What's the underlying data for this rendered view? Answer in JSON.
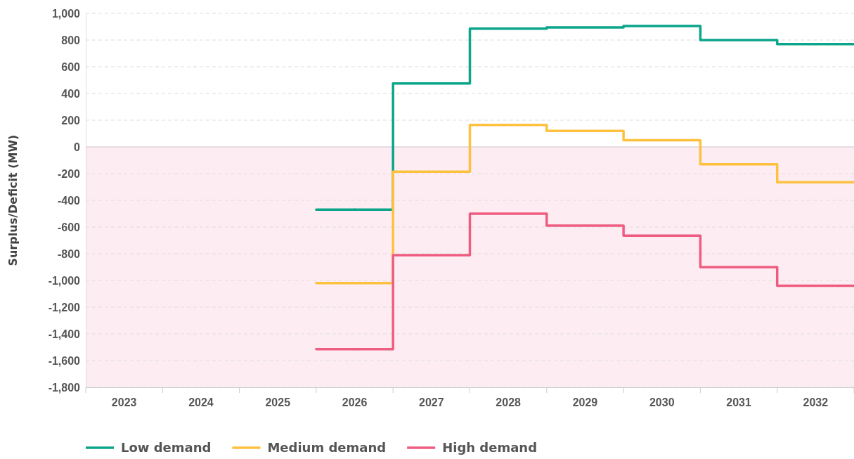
{
  "chart_data": {
    "type": "step",
    "ylabel": "Surplus/Deficit (MW)",
    "categories": [
      "2023",
      "2024",
      "2025",
      "2026",
      "2027",
      "2028",
      "2029",
      "2030",
      "2031",
      "2032"
    ],
    "series": [
      {
        "name": "Low demand",
        "color": "#0aa58a",
        "values": [
          null,
          null,
          null,
          -470,
          475,
          885,
          895,
          905,
          800,
          770
        ]
      },
      {
        "name": "Medium demand",
        "color": "#fec13f",
        "values": [
          null,
          null,
          null,
          -1020,
          -185,
          165,
          120,
          50,
          -130,
          -265
        ]
      },
      {
        "name": "High demand",
        "color": "#ee5d81",
        "values": [
          null,
          null,
          null,
          -1515,
          -810,
          -500,
          -590,
          -665,
          -900,
          -1040
        ]
      }
    ],
    "ylim": [
      -1800,
      1000
    ],
    "yticks": [
      {
        "value": -1800,
        "label": "-1,800"
      },
      {
        "value": -1600,
        "label": "-1,600"
      },
      {
        "value": -1400,
        "label": "-1,400"
      },
      {
        "value": -1200,
        "label": "-1,200"
      },
      {
        "value": -1000,
        "label": "-1,000"
      },
      -800,
      -600,
      -400,
      -200,
      0,
      200,
      400,
      600,
      800,
      {
        "value": 1000,
        "label": "1,000"
      }
    ],
    "bands": [
      {
        "axis": "y",
        "from": -1800,
        "to": 0,
        "color": "#fdedf2"
      }
    ],
    "grid": "y",
    "legend": "bottom",
    "line_style": "solid"
  }
}
